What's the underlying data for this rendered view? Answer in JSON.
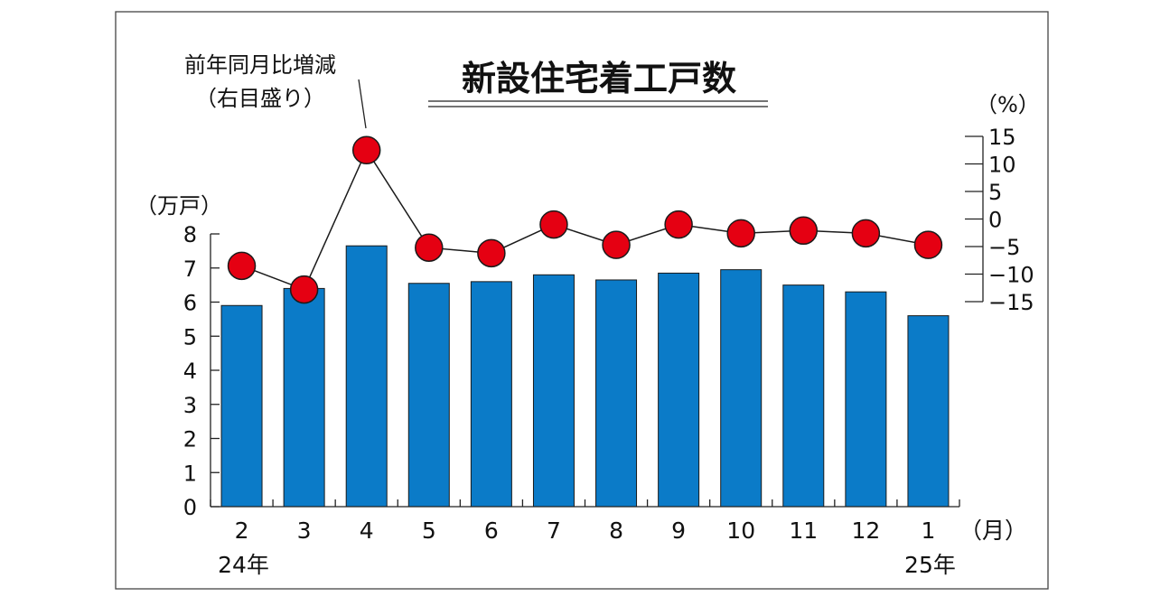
{
  "chart_data": {
    "type": "bar",
    "title": "新設住宅着工戸数",
    "categories": [
      "2",
      "3",
      "4",
      "5",
      "6",
      "7",
      "8",
      "9",
      "10",
      "11",
      "12",
      "1"
    ],
    "category_unit": "（月）",
    "year_labels": [
      {
        "category_index": 0,
        "text": "24年"
      },
      {
        "category_index": 11,
        "text": "25年"
      }
    ],
    "series": [
      {
        "type": "bar",
        "axis": "left",
        "values": [
          5.9,
          6.4,
          7.65,
          6.55,
          6.6,
          6.8,
          6.65,
          6.85,
          6.95,
          6.5,
          6.3,
          5.6
        ],
        "color": "#0b7bc8"
      },
      {
        "type": "line",
        "axis": "right",
        "name": "前年同月比増減",
        "values": [
          -8.5,
          -12.8,
          12.5,
          -5.2,
          -6.2,
          -1.0,
          -4.7,
          -1.0,
          -2.6,
          -2.1,
          -2.6,
          -4.7
        ],
        "color": "#e50012"
      }
    ],
    "y_left": {
      "label": "（万戸）",
      "lim": [
        0,
        8
      ],
      "ticks": [
        "0",
        "1",
        "2",
        "3",
        "4",
        "5",
        "6",
        "7",
        "8"
      ]
    },
    "y_right": {
      "label": "（%）",
      "lim": [
        -15,
        15
      ],
      "ticks": [
        "15",
        "10",
        "5",
        "0",
        "−5",
        "−10",
        "−15"
      ]
    },
    "annotation": {
      "line1": "前年同月比増減",
      "line2": "（右目盛り）"
    },
    "grid": false,
    "legend": "none"
  }
}
